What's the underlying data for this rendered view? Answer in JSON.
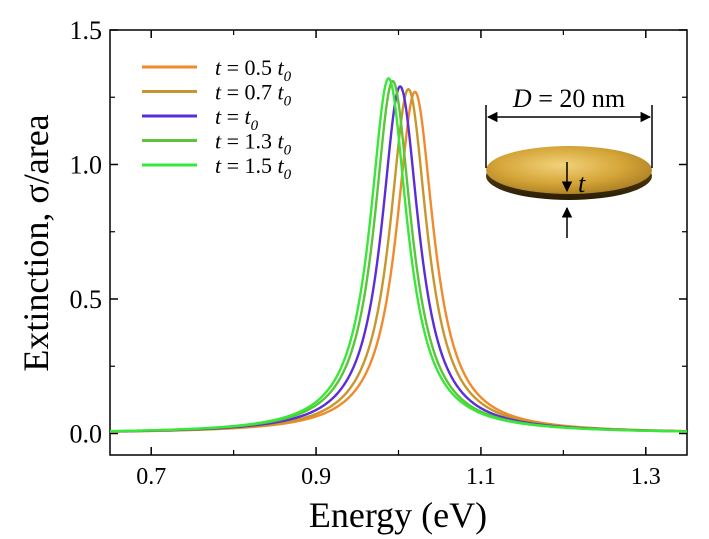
{
  "chart_data": {
    "type": "line",
    "title": "",
    "xlabel": "Energy (eV)",
    "ylabel": "Extinction, σ/area",
    "xlim": [
      0.65,
      1.35
    ],
    "ylim": [
      -0.08,
      1.5
    ],
    "x_ticks": [
      {
        "value": 0.7,
        "label": "0.7"
      },
      {
        "value": 0.9,
        "label": "0.9"
      },
      {
        "value": 1.1,
        "label": "1.1"
      },
      {
        "value": 1.3,
        "label": "1.3"
      }
    ],
    "y_ticks": [
      {
        "value": 0.0,
        "label": "0.0"
      },
      {
        "value": 0.5,
        "label": "0.5"
      },
      {
        "value": 1.0,
        "label": "1.0"
      },
      {
        "value": 1.5,
        "label": "1.5"
      }
    ],
    "legend_position": "top-left",
    "series": [
      {
        "name": "t = 0.5 t0",
        "label_lead": "t",
        "label_mid": " = 0.5 ",
        "label_sym": "t",
        "label_sub": "0",
        "color": "#F08A2C",
        "peak_x": 1.02,
        "peak_y": 1.27,
        "fwhm": 0.055
      },
      {
        "name": "t = 0.7 t0",
        "label_lead": "t",
        "label_mid": " = 0.7 ",
        "label_sym": "t",
        "label_sub": "0",
        "color": "#C8962C",
        "peak_x": 1.012,
        "peak_y": 1.28,
        "fwhm": 0.055
      },
      {
        "name": "t = t0",
        "label_lead": "t",
        "label_mid": " =  ",
        "label_sym": "t",
        "label_sub": "0",
        "color": "#5A2ED8",
        "peak_x": 1.002,
        "peak_y": 1.29,
        "fwhm": 0.055
      },
      {
        "name": "t = 1.3 t0",
        "label_lead": "t",
        "label_mid": " = 1.3 ",
        "label_sym": "t",
        "label_sub": "0",
        "color": "#5CC43A",
        "peak_x": 0.993,
        "peak_y": 1.31,
        "fwhm": 0.055
      },
      {
        "name": "t = 1.5 t0",
        "label_lead": "t",
        "label_mid": " = 1.5 ",
        "label_sym": "t",
        "label_sub": "0",
        "color": "#38E838",
        "peak_x": 0.988,
        "peak_y": 1.32,
        "fwhm": 0.055
      }
    ],
    "inset": {
      "diameter_label_sym": "D",
      "diameter_label_rest": " = 20 nm",
      "thickness_label": "t",
      "disk_color": "#D4A437"
    }
  }
}
